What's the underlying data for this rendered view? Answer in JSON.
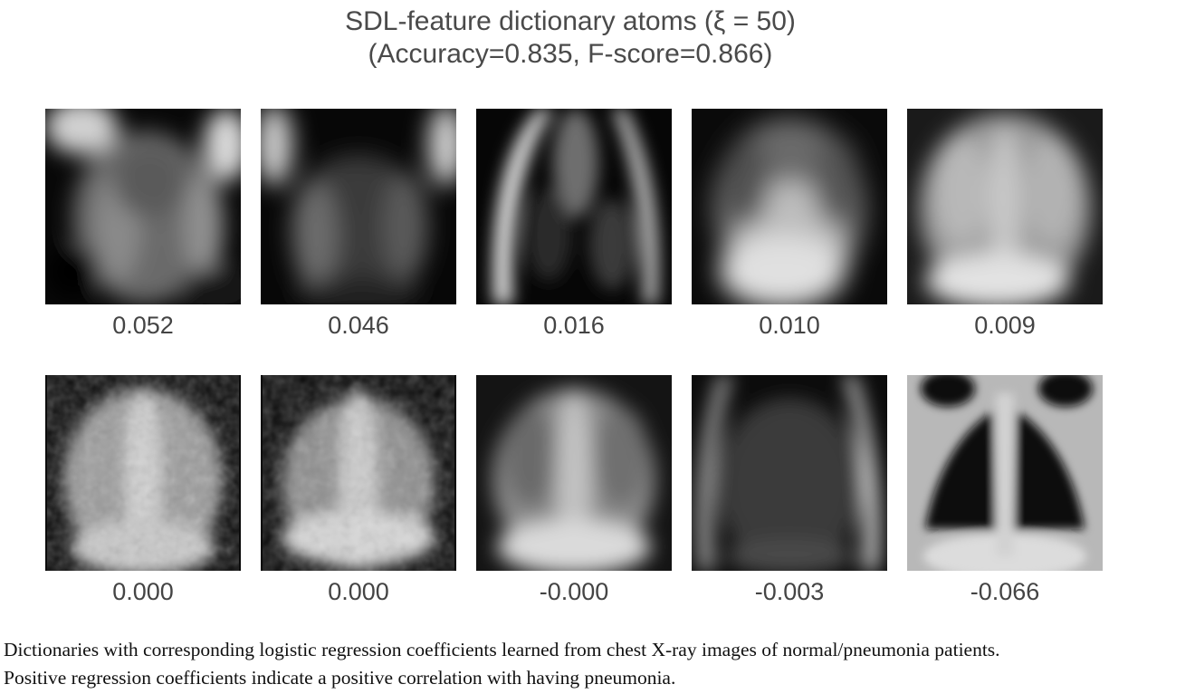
{
  "figure": {
    "title_line1": "SDL-feature dictionary atoms (ξ = 50)",
    "title_line2": "(Accuracy=0.835, F-score=0.866)"
  },
  "atoms": [
    {
      "coefficient": "0.052"
    },
    {
      "coefficient": "0.046"
    },
    {
      "coefficient": "0.016"
    },
    {
      "coefficient": "0.010"
    },
    {
      "coefficient": "0.009"
    },
    {
      "coefficient": "0.000"
    },
    {
      "coefficient": "0.000"
    },
    {
      "coefficient": "-0.000"
    },
    {
      "coefficient": "-0.003"
    },
    {
      "coefficient": "-0.066"
    }
  ],
  "caption": {
    "line1": "Dictionaries with corresponding logistic regression coefficients learned from chest X-ray images of normal/pneumonia patients.",
    "line2": "Positive regression coefficients indicate a positive correlation with having pneumonia."
  }
}
